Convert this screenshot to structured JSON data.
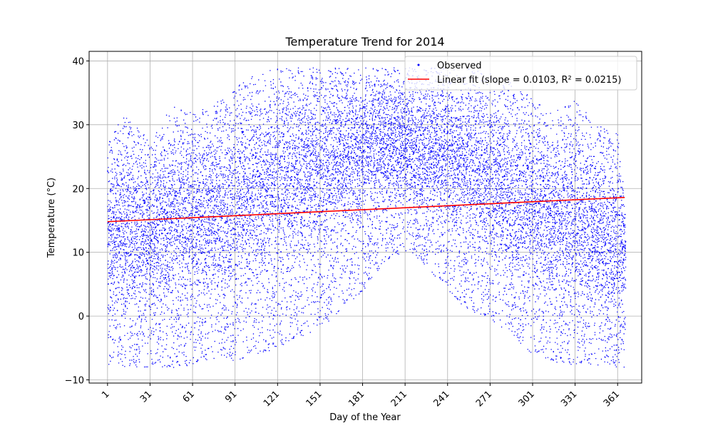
{
  "chart_data": {
    "type": "scatter",
    "title": "Temperature Trend for 2014",
    "xlabel": "Day of the Year",
    "ylabel": "Temperature (°C)",
    "xlim": [
      -12,
      378
    ],
    "ylim": [
      -10.5,
      41.5
    ],
    "xticks": [
      1,
      31,
      61,
      91,
      121,
      151,
      181,
      211,
      241,
      271,
      301,
      331,
      361
    ],
    "xtick_labels": [
      "1",
      "31",
      "61",
      "91",
      "121",
      "151",
      "181",
      "211",
      "241",
      "271",
      "301",
      "331",
      "361"
    ],
    "yticks": [
      -10,
      0,
      10,
      20,
      30,
      40
    ],
    "ytick_labels": [
      "−10",
      "0",
      "10",
      "20",
      "30",
      "40"
    ],
    "grid": true,
    "legend_position": "top-right",
    "series": [
      {
        "name": "Observed",
        "kind": "scatter",
        "color": "#0000ff",
        "envelope": {
          "day": [
            1,
            15,
            31,
            45,
            61,
            75,
            91,
            105,
            121,
            135,
            151,
            165,
            181,
            195,
            211,
            225,
            241,
            255,
            271,
            285,
            301,
            315,
            331,
            345,
            361,
            366
          ],
          "min": [
            -8,
            -8,
            -8,
            -8,
            -8,
            -7,
            -7,
            -6,
            -5,
            -4,
            -2,
            1,
            4,
            8,
            10,
            8,
            4,
            1,
            -1,
            -3,
            -6,
            -7,
            -8,
            -8,
            -8,
            -8
          ],
          "max": [
            28,
            32,
            27,
            33,
            32,
            33,
            36,
            38,
            39,
            39,
            39,
            39,
            39,
            39,
            39,
            39,
            39,
            39,
            38,
            37,
            34,
            32,
            34,
            30,
            29,
            16
          ],
          "mean": [
            12,
            14,
            12,
            15,
            15,
            16,
            18,
            19,
            21,
            22,
            24,
            25,
            26,
            27,
            27,
            26,
            25,
            23,
            21,
            19,
            17,
            15,
            14,
            13,
            12,
            10
          ]
        }
      },
      {
        "name": "Linear fit (slope = 0.0103, R² = 0.0215)",
        "kind": "line",
        "color": "#ff0000",
        "x": [
          1,
          366
        ],
        "y": [
          14.8,
          18.6
        ]
      }
    ]
  }
}
